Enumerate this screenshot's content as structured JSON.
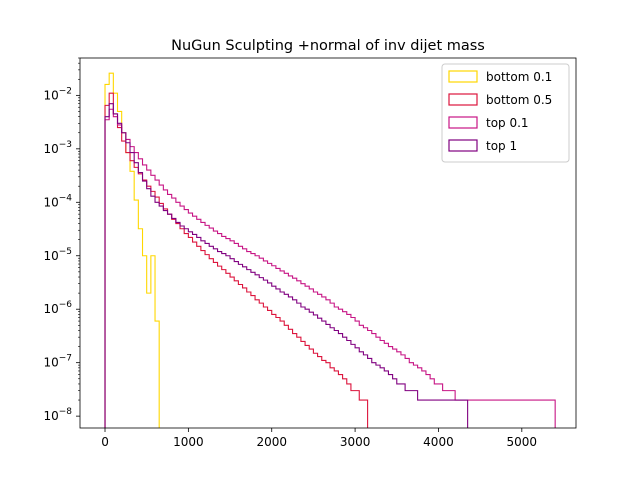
{
  "chart_data": {
    "type": "histogram-step",
    "title": "NuGun Sculpting +normal of inv dijet mass",
    "xlabel": "",
    "ylabel": "",
    "xlim": [
      -300,
      5650
    ],
    "ylim": [
      6e-09,
      0.05
    ],
    "yscale": "log",
    "x_ticks": [
      0,
      1000,
      2000,
      3000,
      4000,
      5000
    ],
    "y_ticks": [
      {
        "value": 0.01,
        "base": "10",
        "exp": "−2"
      },
      {
        "value": 0.001,
        "base": "10",
        "exp": "−3"
      },
      {
        "value": 0.0001,
        "base": "10",
        "exp": "−4"
      },
      {
        "value": 1e-05,
        "base": "10",
        "exp": "−5"
      },
      {
        "value": 1e-06,
        "base": "10",
        "exp": "−6"
      },
      {
        "value": 1e-07,
        "base": "10",
        "exp": "−7"
      },
      {
        "value": 1e-08,
        "base": "10",
        "exp": "−8"
      }
    ],
    "bin_width": 50,
    "legend_position": "upper right",
    "series": [
      {
        "name": "bottom 0.1",
        "color": "#ffd700",
        "x_start": 0,
        "values": [
          0.016,
          0.026,
          0.011,
          0.005,
          0.002,
          0.00085,
          0.00038,
          0.00011,
          3.2e-05,
          1e-05,
          2e-06,
          1e-05,
          6e-07
        ]
      },
      {
        "name": "bottom 0.5",
        "color": "#dc143c",
        "x_start": 0,
        "values": [
          0.0065,
          0.011,
          0.0045,
          0.0025,
          0.0014,
          0.00085,
          0.0006,
          0.00045,
          0.00034,
          0.00026,
          0.0002,
          0.00016,
          0.000125,
          9.5e-05,
          7.5e-05,
          6e-05,
          4.8e-05,
          4e-05,
          3.2e-05,
          2.6e-05,
          2.2e-05,
          1.8e-05,
          1.5e-05,
          1.25e-05,
          1.05e-05,
          8.8e-06,
          7.5e-06,
          6.4e-06,
          5.5e-06,
          4.7e-06,
          4e-06,
          3.4e-06,
          2.9e-06,
          2.5e-06,
          2.1e-06,
          1.8e-06,
          1.5e-06,
          1.3e-06,
          1.1e-06,
          9.5e-07,
          8e-07,
          7e-07,
          6e-07,
          5e-07,
          4.2e-07,
          3.5e-07,
          3e-07,
          2.5e-07,
          2.1e-07,
          1.8e-07,
          1.5e-07,
          1.3e-07,
          1.1e-07,
          1e-07,
          8e-08,
          7e-08,
          6e-08,
          5e-08,
          4e-08,
          3e-08,
          3e-08,
          2e-08,
          2e-08
        ]
      },
      {
        "name": "top 0.1",
        "color": "#c71585",
        "x_start": 0,
        "values": [
          0.0035,
          0.0055,
          0.004,
          0.0028,
          0.002,
          0.0015,
          0.0011,
          0.00085,
          0.00065,
          0.0005,
          0.0004,
          0.00032,
          0.00026,
          0.00021,
          0.00017,
          0.00014,
          0.00012,
          0.0001,
          8.5e-05,
          7.3e-05,
          6.3e-05,
          5.5e-05,
          4.8e-05,
          4.2e-05,
          3.7e-05,
          3.3e-05,
          2.9e-05,
          2.6e-05,
          2.3e-05,
          2.1e-05,
          1.9e-05,
          1.7e-05,
          1.5e-05,
          1.35e-05,
          1.2e-05,
          1.1e-05,
          1e-05,
          9e-06,
          8e-06,
          7.2e-06,
          6.5e-06,
          5.8e-06,
          5.2e-06,
          4.7e-06,
          4.2e-06,
          3.8e-06,
          3.4e-06,
          3e-06,
          2.7e-06,
          2.4e-06,
          2.1e-06,
          1.9e-06,
          1.7e-06,
          1.5e-06,
          1.3e-06,
          1.1e-06,
          1e-06,
          9e-07,
          8e-07,
          7e-07,
          6e-07,
          5e-07,
          4.5e-07,
          4e-07,
          3.5e-07,
          3e-07,
          2.6e-07,
          2.3e-07,
          2e-07,
          1.8e-07,
          1.6e-07,
          1.4e-07,
          1.2e-07,
          1e-07,
          9e-08,
          8e-08,
          7e-08,
          6e-08,
          5e-08,
          4e-08,
          4e-08,
          3e-08,
          3e-08,
          3e-08,
          2e-08,
          2e-08,
          2e-08,
          2e-08,
          2e-08,
          2e-08,
          2e-08,
          2e-08,
          2e-08,
          2e-08,
          2e-08,
          2e-08,
          2e-08,
          2e-08,
          2e-08,
          2e-08,
          2e-08,
          2e-08,
          2e-08,
          2e-08,
          2e-08,
          2e-08,
          2e-08,
          2e-08
        ]
      },
      {
        "name": "top 1",
        "color": "#800080",
        "x_start": 0,
        "values": [
          0.004,
          0.007,
          0.0045,
          0.003,
          0.002,
          0.0013,
          0.00085,
          0.00055,
          0.00036,
          0.00025,
          0.00018,
          0.00013,
          0.0001,
          8.5e-05,
          7e-05,
          6e-05,
          5e-05,
          4.2e-05,
          3.6e-05,
          3.2e-05,
          2.8e-05,
          2.5e-05,
          2.2e-05,
          1.9e-05,
          1.7e-05,
          1.5e-05,
          1.35e-05,
          1.2e-05,
          1.1e-05,
          1e-05,
          8.8e-06,
          7.8e-06,
          6.9e-06,
          6.2e-06,
          5.5e-06,
          4.9e-06,
          4.4e-06,
          3.9e-06,
          3.5e-06,
          3.1e-06,
          2.7e-06,
          2.4e-06,
          2.1e-06,
          1.9e-06,
          1.7e-06,
          1.5e-06,
          1.3e-06,
          1.1e-06,
          1e-06,
          8.8e-07,
          7.8e-07,
          6.8e-07,
          6e-07,
          5.2e-07,
          4.5e-07,
          4e-07,
          3.5e-07,
          3e-07,
          2.6e-07,
          2.2e-07,
          1.9e-07,
          1.6e-07,
          1.4e-07,
          1.2e-07,
          1e-07,
          9e-08,
          8e-08,
          7e-08,
          6e-08,
          5e-08,
          4e-08,
          4e-08,
          3e-08,
          3e-08,
          3e-08,
          2e-08,
          2e-08,
          2e-08,
          2e-08,
          2e-08,
          2e-08,
          2e-08,
          2e-08,
          2e-08,
          2e-08,
          2e-08,
          2e-08
        ]
      }
    ]
  }
}
